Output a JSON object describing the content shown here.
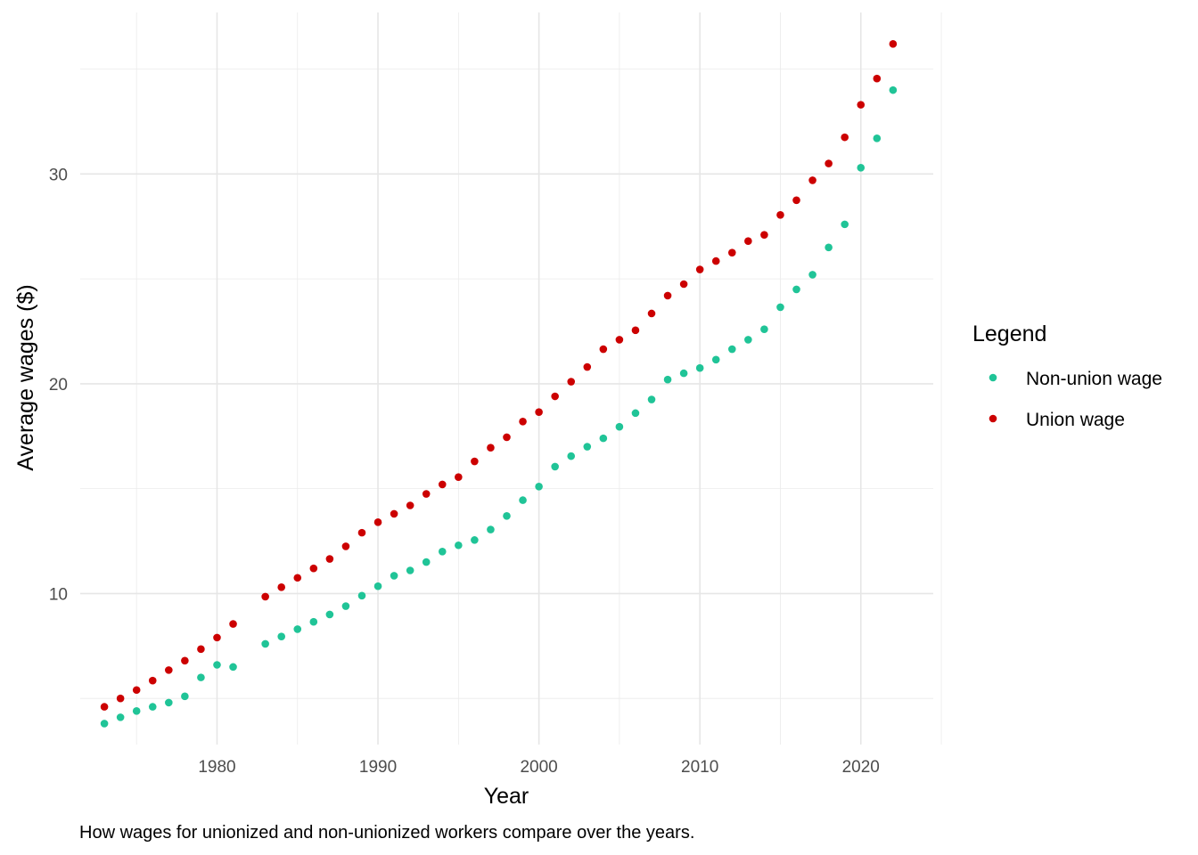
{
  "chart_data": {
    "type": "scatter",
    "title": "",
    "xlabel": "Year",
    "ylabel": "Average wages ($)",
    "caption": "How wages for unionized and non-unionized workers compare over the years.",
    "xlim": [
      1971.5,
      2024.5
    ],
    "ylim": [
      2.8,
      37.7
    ],
    "x_ticks": [
      1980,
      1990,
      2000,
      2010,
      2020
    ],
    "y_ticks": [
      10,
      20,
      30
    ],
    "grid": true,
    "legend": {
      "title": "Legend",
      "position": "right"
    },
    "x": [
      1973,
      1974,
      1975,
      1976,
      1977,
      1978,
      1979,
      1980,
      1981,
      1983,
      1984,
      1985,
      1986,
      1987,
      1988,
      1989,
      1990,
      1991,
      1992,
      1993,
      1994,
      1995,
      1996,
      1997,
      1998,
      1999,
      2000,
      2001,
      2002,
      2003,
      2004,
      2005,
      2006,
      2007,
      2008,
      2009,
      2010,
      2011,
      2012,
      2013,
      2014,
      2015,
      2016,
      2017,
      2018,
      2019,
      2020,
      2021,
      2022
    ],
    "series": [
      {
        "name": "Non-union wage",
        "color": "#20c497",
        "values": [
          3.8,
          4.1,
          4.4,
          4.6,
          4.8,
          5.1,
          6.0,
          6.6,
          6.5,
          7.6,
          7.95,
          8.3,
          8.65,
          9.0,
          9.4,
          9.9,
          10.35,
          10.85,
          11.1,
          11.5,
          12.0,
          12.3,
          12.55,
          13.05,
          13.7,
          14.45,
          15.1,
          16.05,
          16.55,
          17.0,
          17.4,
          17.95,
          18.6,
          19.25,
          20.2,
          20.5,
          20.75,
          21.15,
          21.65,
          22.1,
          22.6,
          23.65,
          24.5,
          25.2,
          26.5,
          27.6,
          30.3,
          31.7,
          34.0
        ]
      },
      {
        "name": "Union wage",
        "color": "#cc0000",
        "values": [
          4.6,
          5.0,
          5.4,
          5.85,
          6.35,
          6.8,
          7.35,
          7.9,
          8.55,
          9.85,
          10.3,
          10.75,
          11.2,
          11.65,
          12.25,
          12.9,
          13.4,
          13.8,
          14.2,
          14.75,
          15.2,
          15.55,
          16.3,
          16.95,
          17.45,
          18.2,
          18.65,
          19.4,
          20.1,
          20.8,
          21.65,
          22.1,
          22.55,
          23.35,
          24.2,
          24.75,
          25.45,
          25.85,
          26.25,
          26.8,
          27.1,
          28.05,
          28.75,
          29.7,
          30.5,
          31.75,
          33.3,
          34.55,
          36.2
        ]
      }
    ]
  }
}
